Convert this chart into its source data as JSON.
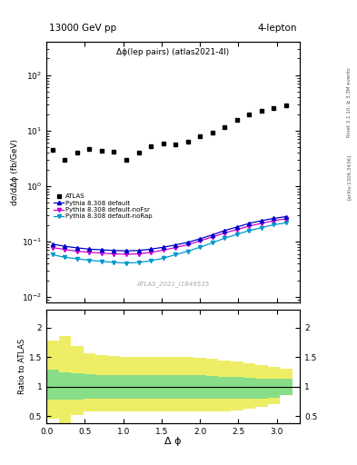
{
  "title_left": "13000 GeV pp",
  "title_right": "4-lepton",
  "annotation": "Δϕ(lep pairs) (atlas2021-4l)",
  "watermark": "ATLAS_2021_I1849535",
  "right_label1": "Rivet 3.1.10, ≥ 3.3M events",
  "right_label2": "[arXiv:1306.3436]",
  "xlabel": "Δ ϕ",
  "ylabel_main": "dσ/dΔϕ (fb/GeV)",
  "ylabel_ratio": "Ratio to ATLAS",
  "xlim": [
    0,
    3.3
  ],
  "ylim_main": [
    0.008,
    400
  ],
  "ylim_ratio": [
    0.38,
    2.3
  ],
  "atlas_x": [
    0.08,
    0.24,
    0.4,
    0.56,
    0.72,
    0.88,
    1.04,
    1.2,
    1.36,
    1.52,
    1.68,
    1.84,
    2.0,
    2.16,
    2.32,
    2.48,
    2.64,
    2.8,
    2.96,
    3.12
  ],
  "atlas_y": [
    4.5,
    3.0,
    4.0,
    4.7,
    4.4,
    4.2,
    3.0,
    4.0,
    5.2,
    5.8,
    5.6,
    6.3,
    7.8,
    9.2,
    11.5,
    15.5,
    19.5,
    22.5,
    26.0,
    29.0
  ],
  "py_x": [
    0.08,
    0.24,
    0.4,
    0.56,
    0.72,
    0.88,
    1.04,
    1.2,
    1.36,
    1.52,
    1.68,
    1.84,
    2.0,
    2.16,
    2.32,
    2.48,
    2.64,
    2.8,
    2.96,
    3.12
  ],
  "py_default_y": [
    0.09,
    0.082,
    0.077,
    0.073,
    0.071,
    0.069,
    0.068,
    0.069,
    0.073,
    0.079,
    0.087,
    0.097,
    0.112,
    0.132,
    0.158,
    0.183,
    0.213,
    0.238,
    0.262,
    0.282
  ],
  "py_noFSR_y": [
    0.078,
    0.072,
    0.067,
    0.064,
    0.062,
    0.06,
    0.059,
    0.06,
    0.064,
    0.07,
    0.078,
    0.088,
    0.103,
    0.121,
    0.143,
    0.165,
    0.191,
    0.213,
    0.238,
    0.258
  ],
  "py_noRap_y": [
    0.058,
    0.052,
    0.049,
    0.046,
    0.044,
    0.042,
    0.041,
    0.042,
    0.045,
    0.05,
    0.058,
    0.067,
    0.079,
    0.095,
    0.115,
    0.135,
    0.158,
    0.178,
    0.201,
    0.218
  ],
  "ratio_x": [
    0.08,
    0.24,
    0.4,
    0.56,
    0.72,
    0.88,
    1.04,
    1.2,
    1.36,
    1.52,
    1.68,
    1.84,
    2.0,
    2.16,
    2.32,
    2.48,
    2.64,
    2.8,
    2.96,
    3.12
  ],
  "ratio_green_upper": [
    1.28,
    1.24,
    1.22,
    1.21,
    1.2,
    1.19,
    1.19,
    1.19,
    1.19,
    1.19,
    1.19,
    1.19,
    1.19,
    1.18,
    1.17,
    1.16,
    1.15,
    1.14,
    1.13,
    1.13
  ],
  "ratio_green_lower": [
    0.78,
    0.78,
    0.78,
    0.79,
    0.79,
    0.79,
    0.8,
    0.8,
    0.8,
    0.8,
    0.8,
    0.8,
    0.8,
    0.8,
    0.8,
    0.8,
    0.8,
    0.8,
    0.81,
    0.86
  ],
  "ratio_yellow_upper": [
    1.78,
    1.85,
    1.68,
    1.57,
    1.54,
    1.52,
    1.5,
    1.5,
    1.5,
    1.5,
    1.5,
    1.5,
    1.49,
    1.47,
    1.44,
    1.42,
    1.39,
    1.36,
    1.33,
    1.31
  ],
  "ratio_yellow_lower": [
    0.45,
    0.35,
    0.52,
    0.58,
    0.58,
    0.58,
    0.58,
    0.58,
    0.58,
    0.58,
    0.58,
    0.58,
    0.58,
    0.58,
    0.58,
    0.6,
    0.62,
    0.66,
    0.7,
    0.86
  ],
  "color_atlas": "#000000",
  "color_py_default": "#0000cc",
  "color_py_noFSR": "#cc00cc",
  "color_py_noRap": "#0099cc",
  "color_green": "#88dd88",
  "color_yellow": "#eeee66",
  "legend_entries": [
    "ATLAS",
    "Pythia 8.308 default",
    "Pythia 8.308 default-noFsr",
    "Pythia 8.308 default-noRap"
  ]
}
